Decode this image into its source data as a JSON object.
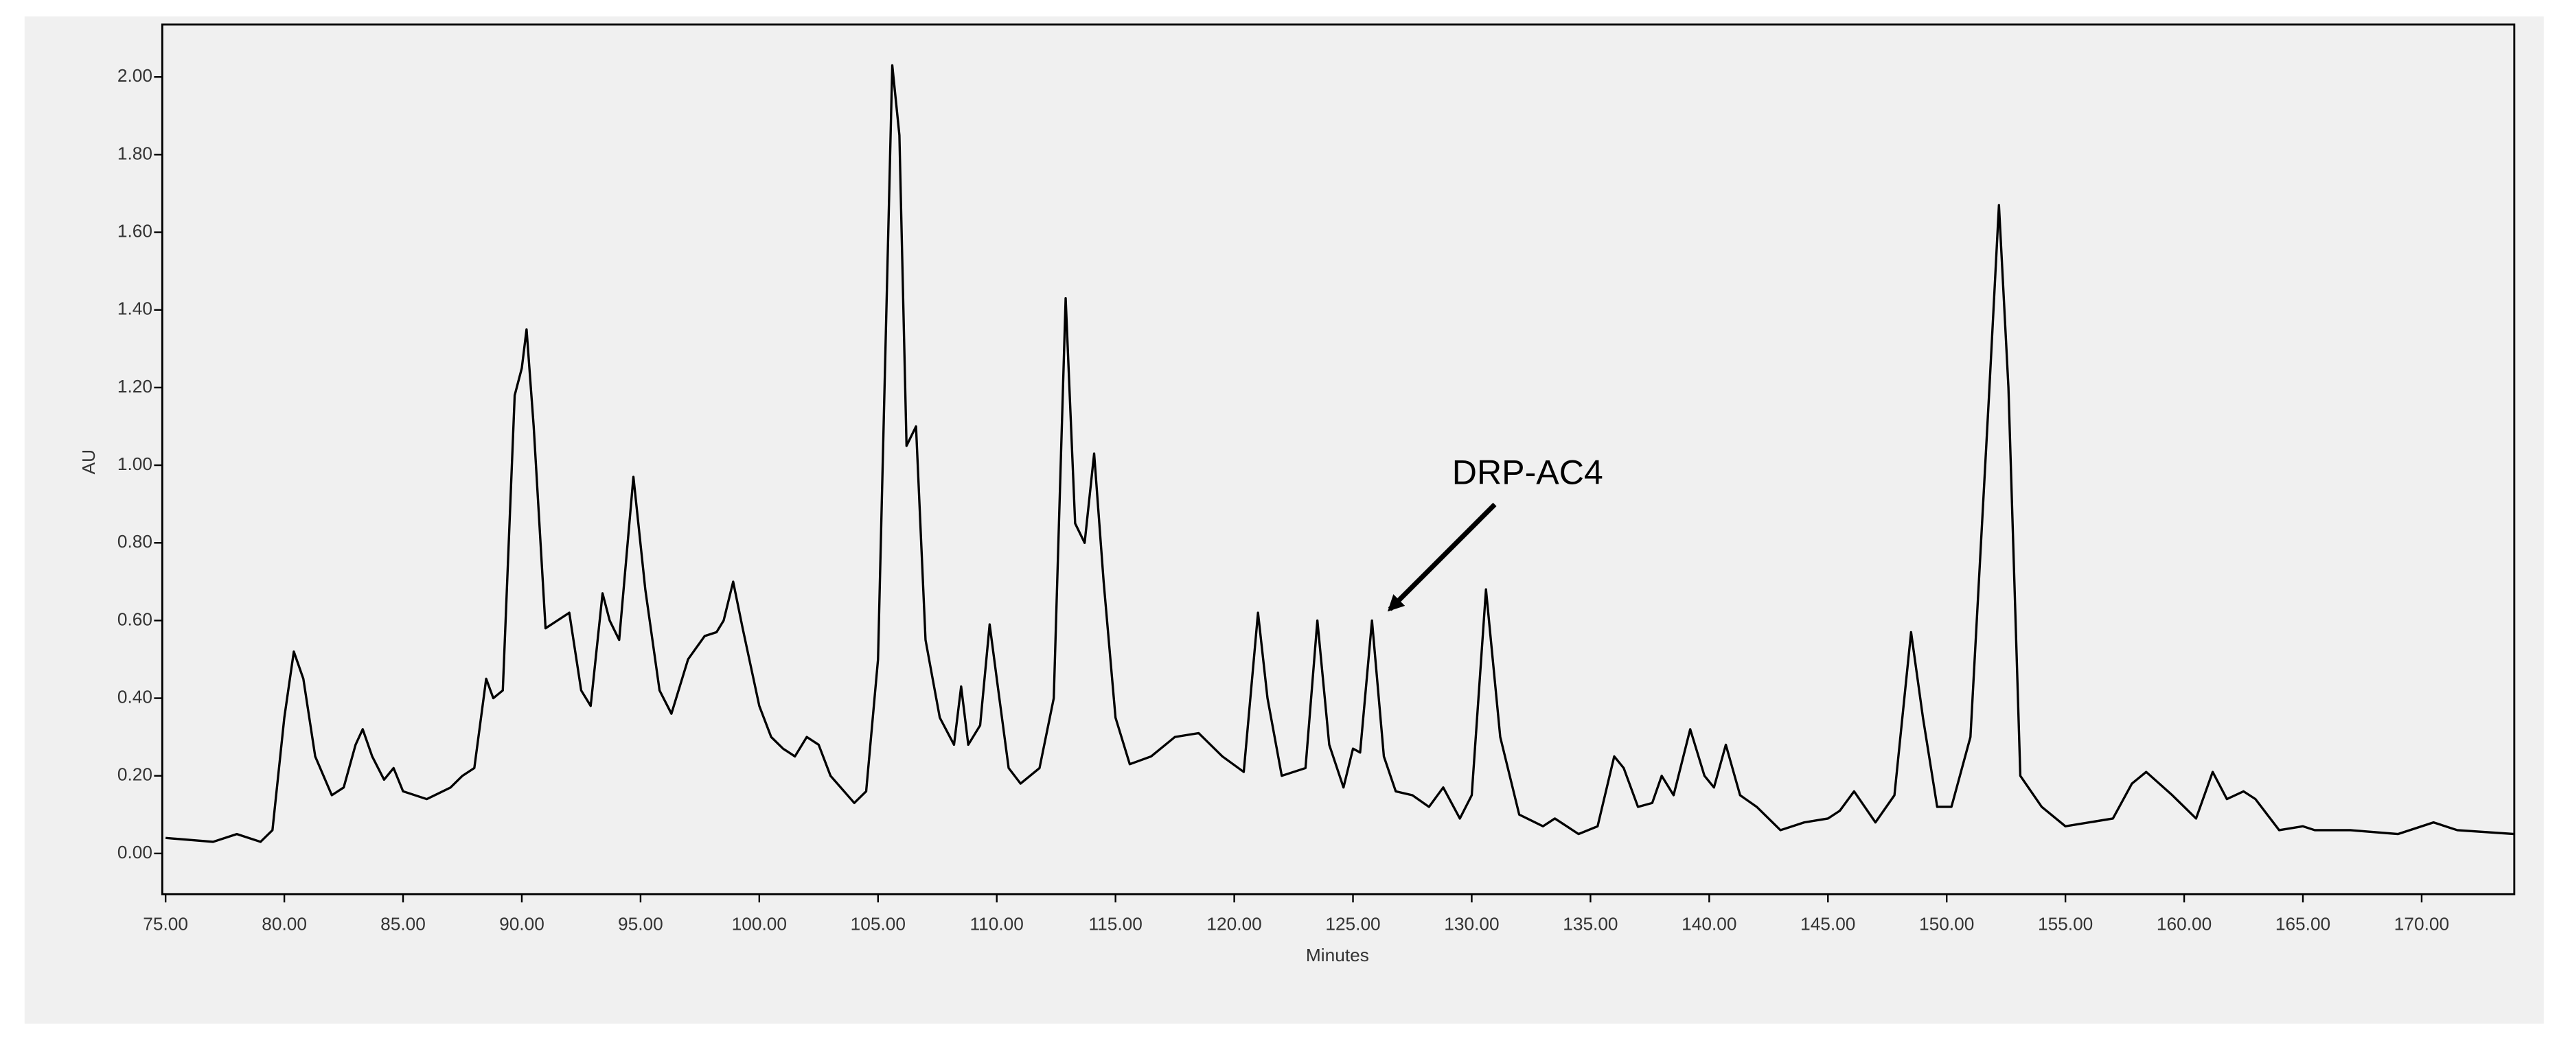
{
  "chart_data": {
    "type": "line",
    "xlabel": "Minutes",
    "ylabel": "AU",
    "annotation": "DRP-AC4",
    "color": "#000000",
    "xlim": [
      74.86,
      173.9
    ],
    "ylim": [
      -0.105,
      2.135
    ],
    "xticks": [
      {
        "value": 75,
        "label": "75.00"
      },
      {
        "value": 80,
        "label": "80.00"
      },
      {
        "value": 85,
        "label": "85.00"
      },
      {
        "value": 90,
        "label": "90.00"
      },
      {
        "value": 95,
        "label": "95.00"
      },
      {
        "value": 100,
        "label": "100.00"
      },
      {
        "value": 105,
        "label": "105.00"
      },
      {
        "value": 110,
        "label": "110.00"
      },
      {
        "value": 115,
        "label": "115.00"
      },
      {
        "value": 120,
        "label": "120.00"
      },
      {
        "value": 125,
        "label": "125.00"
      },
      {
        "value": 130,
        "label": "130.00"
      },
      {
        "value": 135,
        "label": "135.00"
      },
      {
        "value": 140,
        "label": "140.00"
      },
      {
        "value": 145,
        "label": "145.00"
      },
      {
        "value": 150,
        "label": "150.00"
      },
      {
        "value": 155,
        "label": "155.00"
      },
      {
        "value": 160,
        "label": "160.00"
      },
      {
        "value": 165,
        "label": "165.00"
      },
      {
        "value": 170,
        "label": "170.00"
      }
    ],
    "yticks": [
      {
        "value": 0,
        "label": "0.00"
      },
      {
        "value": 0.2,
        "label": "0.20"
      },
      {
        "value": 0.4,
        "label": "0.40"
      },
      {
        "value": 0.6,
        "label": "0.60"
      },
      {
        "value": 0.8,
        "label": "0.80"
      },
      {
        "value": 1,
        "label": "1.00"
      },
      {
        "value": 1.2,
        "label": "1.20"
      },
      {
        "value": 1.4,
        "label": "1.40"
      },
      {
        "value": 1.6,
        "label": "1.60"
      },
      {
        "value": 1.8,
        "label": "1.80"
      },
      {
        "value": 2,
        "label": "2.00"
      }
    ],
    "x": [
      75,
      77,
      78,
      79,
      79.5,
      80,
      80.4,
      80.8,
      81.3,
      82,
      82.5,
      83,
      83.3,
      83.7,
      84.2,
      84.6,
      85,
      86,
      87,
      87.5,
      88,
      88.5,
      88.8,
      89.2,
      89.7,
      90,
      90.2,
      90.5,
      91,
      91.5,
      92,
      92.5,
      92.9,
      93.4,
      93.7,
      94.1,
      94.7,
      95.2,
      95.8,
      96.3,
      97,
      97.7,
      98.2,
      98.5,
      98.9,
      99.3,
      100,
      100.5,
      101,
      101.5,
      102,
      102.5,
      103,
      104,
      104.5,
      105,
      105.6,
      105.9,
      106.2,
      106.6,
      107,
      107.6,
      108.2,
      108.5,
      108.8,
      109.3,
      109.7,
      110,
      110.5,
      111,
      111.8,
      112.4,
      112.9,
      113.3,
      113.7,
      114.1,
      114.5,
      115,
      115.6,
      116.5,
      117.5,
      118.5,
      119.5,
      120.4,
      121,
      121.4,
      122,
      123,
      123.5,
      124,
      124.6,
      125,
      125.3,
      125.8,
      126.3,
      126.8,
      127.5,
      128.2,
      128.8,
      129.5,
      130,
      130.6,
      131.2,
      132,
      133,
      133.5,
      134.5,
      135.3,
      136,
      136.4,
      137,
      137.6,
      138,
      138.5,
      139.2,
      139.8,
      140.2,
      140.7,
      141.3,
      142,
      143,
      144,
      145,
      145.5,
      146.1,
      147,
      147.8,
      148.5,
      149,
      149.6,
      150.2,
      151,
      151.8,
      152.2,
      152.6,
      153.1,
      154,
      155,
      157,
      157.8,
      158.4,
      159.5,
      160.5,
      161.2,
      161.8,
      162.5,
      163,
      164,
      165,
      165.5,
      167,
      169,
      170.5,
      171.5,
      173.9
    ],
    "values": [
      0.04,
      0.03,
      0.05,
      0.03,
      0.06,
      0.35,
      0.52,
      0.45,
      0.25,
      0.15,
      0.17,
      0.28,
      0.32,
      0.25,
      0.19,
      0.22,
      0.16,
      0.14,
      0.17,
      0.2,
      0.22,
      0.45,
      0.4,
      0.42,
      1.18,
      1.25,
      1.35,
      1.1,
      0.58,
      0.6,
      0.62,
      0.42,
      0.38,
      0.67,
      0.6,
      0.55,
      0.97,
      0.68,
      0.42,
      0.36,
      0.5,
      0.56,
      0.57,
      0.6,
      0.7,
      0.58,
      0.38,
      0.3,
      0.27,
      0.25,
      0.3,
      0.28,
      0.2,
      0.13,
      0.16,
      0.5,
      2.03,
      1.85,
      1.05,
      1.1,
      0.55,
      0.35,
      0.28,
      0.43,
      0.28,
      0.33,
      0.59,
      0.45,
      0.22,
      0.18,
      0.22,
      0.4,
      1.43,
      0.85,
      0.8,
      1.03,
      0.7,
      0.35,
      0.23,
      0.25,
      0.3,
      0.31,
      0.25,
      0.21,
      0.62,
      0.4,
      0.2,
      0.22,
      0.6,
      0.28,
      0.17,
      0.27,
      0.26,
      0.6,
      0.25,
      0.16,
      0.15,
      0.12,
      0.17,
      0.09,
      0.15,
      0.68,
      0.3,
      0.1,
      0.07,
      0.09,
      0.05,
      0.07,
      0.25,
      0.22,
      0.12,
      0.13,
      0.2,
      0.15,
      0.32,
      0.2,
      0.17,
      0.28,
      0.15,
      0.12,
      0.06,
      0.08,
      0.09,
      0.11,
      0.16,
      0.08,
      0.15,
      0.57,
      0.35,
      0.12,
      0.12,
      0.3,
      1.2,
      1.67,
      1.2,
      0.2,
      0.12,
      0.07,
      0.09,
      0.18,
      0.21,
      0.15,
      0.09,
      0.21,
      0.14,
      0.16,
      0.14,
      0.06,
      0.07,
      0.06,
      0.06,
      0.05,
      0.08,
      0.06,
      0.05
    ]
  }
}
